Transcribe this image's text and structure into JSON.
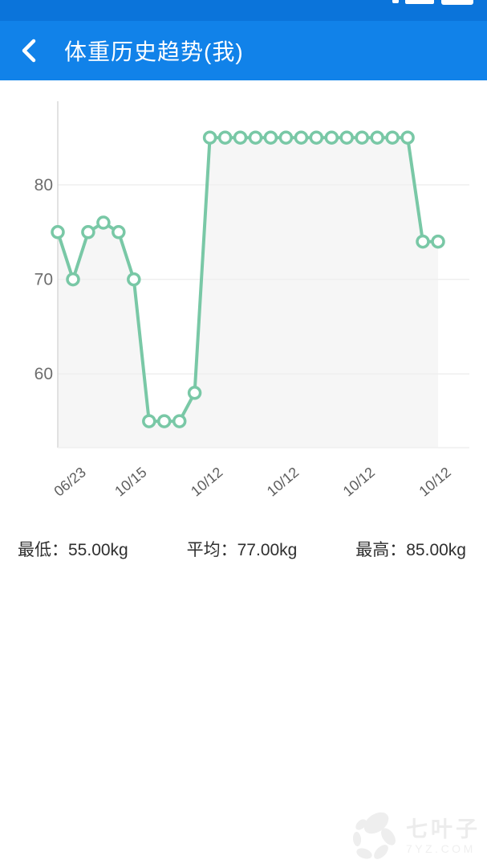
{
  "status_bar": {
    "bg_color": "#0b74da",
    "icons": [
      "signal-icon",
      "battery-icon"
    ]
  },
  "header": {
    "bg_color": "#1182e9",
    "title": "体重历史趋势(我)",
    "back_icon": "chevron-left"
  },
  "chart_data": {
    "type": "line",
    "title": "体重历史趋势(我)",
    "xlabel": "",
    "ylabel": "",
    "unit": "kg",
    "values": [
      75,
      70,
      75,
      76,
      75,
      70,
      55,
      55,
      55,
      58,
      85,
      85,
      85,
      85,
      85,
      85,
      85,
      85,
      85,
      85,
      85,
      85,
      85,
      85,
      74,
      74
    ],
    "x_tick_indices": [
      1,
      5,
      10,
      15,
      20,
      25
    ],
    "x_tick_labels": [
      "06/23",
      "10/15",
      "10/12",
      "10/12",
      "10/12",
      "10/12"
    ],
    "y_ticks": [
      80,
      70,
      60
    ],
    "ylim": [
      52.2,
      88.5
    ],
    "grid": true,
    "legend": false,
    "line_color": "#79c8a6",
    "marker_fill": "#ffffff",
    "area_color": "#f6f6f6",
    "grid_color": "#efefef",
    "axis_color": "#d8d8d8",
    "ytick_color": "#6d6d6d",
    "xtick_color": "#5d5d5d"
  },
  "stats": {
    "items": [
      {
        "label": "最低：",
        "value": "55.00kg"
      },
      {
        "label": "平均：",
        "value": "77.00kg"
      },
      {
        "label": "最高：",
        "value": "85.00kg"
      }
    ]
  },
  "watermark": {
    "name": "七叶子",
    "domain": "7YZ.COM"
  }
}
